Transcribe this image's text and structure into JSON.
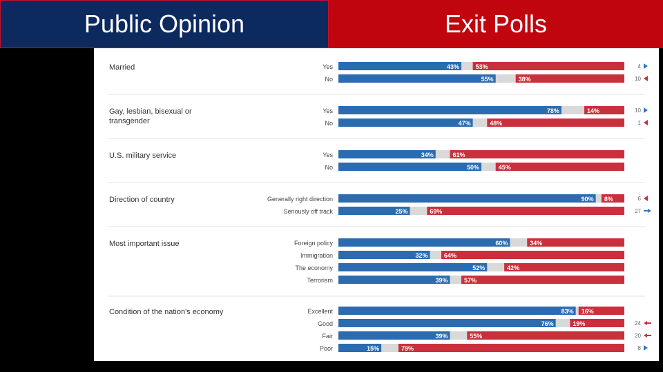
{
  "header": {
    "left_title": "Public Opinion",
    "right_title": "Exit Polls"
  },
  "chart_data": {
    "type": "bar",
    "orientation": "horizontal-stacked",
    "colors": {
      "blue": "#2b6cb0",
      "gray": "#d9d9d9",
      "red": "#c9303b",
      "up": "#2b78c4",
      "down": "#c9303b"
    },
    "groups": [
      {
        "question": [
          "Married"
        ],
        "rows": [
          {
            "label": "Yes",
            "blue": 43,
            "red": 53,
            "blue_label": "43%",
            "red_label": "53%",
            "change": "4",
            "dir": "right-blue"
          },
          {
            "label": "No",
            "blue": 55,
            "red": 38,
            "blue_label": "55%",
            "red_label": "38%",
            "change": "10",
            "dir": "left-red"
          }
        ]
      },
      {
        "question": [
          "Gay, lesbian, bisexual or",
          "transgender"
        ],
        "rows": [
          {
            "label": "Yes",
            "blue": 78,
            "red": 14,
            "blue_label": "78%",
            "red_label": "14%",
            "change": "10",
            "dir": "right-blue"
          },
          {
            "label": "No",
            "blue": 47,
            "red": 48,
            "blue_label": "47%",
            "red_label": "48%",
            "change": "1",
            "dir": "left-red"
          }
        ]
      },
      {
        "question": [
          "U.S. military service"
        ],
        "rows": [
          {
            "label": "Yes",
            "blue": 34,
            "red": 61,
            "blue_label": "34%",
            "red_label": "61%",
            "change": "",
            "dir": ""
          },
          {
            "label": "No",
            "blue": 50,
            "red": 45,
            "blue_label": "50%",
            "red_label": "45%",
            "change": "",
            "dir": ""
          }
        ]
      },
      {
        "question": [
          "Direction of country"
        ],
        "rows": [
          {
            "label": "Generally right direction",
            "blue": 90,
            "red": 8,
            "blue_label": "90%",
            "red_label": "8%",
            "change": "6",
            "dir": "left-red"
          },
          {
            "label": "Seriously off track",
            "blue": 25,
            "red": 69,
            "blue_label": "25%",
            "red_label": "69%",
            "change": "27",
            "dir": "right-arrow-blue"
          }
        ]
      },
      {
        "question": [
          "Most important issue"
        ],
        "rows": [
          {
            "label": "Foreign policy",
            "blue": 60,
            "red": 34,
            "blue_label": "60%",
            "red_label": "34%",
            "change": "",
            "dir": ""
          },
          {
            "label": "Immigration",
            "blue": 32,
            "red": 64,
            "blue_label": "32%",
            "red_label": "64%",
            "change": "",
            "dir": ""
          },
          {
            "label": "The economy",
            "blue": 52,
            "red": 42,
            "blue_label": "52%",
            "red_label": "42%",
            "change": "",
            "dir": ""
          },
          {
            "label": "Terrorism",
            "blue": 39,
            "red": 57,
            "blue_label": "39%",
            "red_label": "57%",
            "change": "",
            "dir": ""
          }
        ]
      },
      {
        "question": [
          "Condition of the nation's economy"
        ],
        "rows": [
          {
            "label": "Excellent",
            "blue": 83,
            "red": 16,
            "blue_label": "83%",
            "red_label": "16%",
            "change": "",
            "dir": ""
          },
          {
            "label": "Good",
            "blue": 76,
            "red": 19,
            "blue_label": "76%",
            "red_label": "19%",
            "change": "24",
            "dir": "left-arrow-red"
          },
          {
            "label": "Fair",
            "blue": 39,
            "red": 55,
            "blue_label": "39%",
            "red_label": "55%",
            "change": "20",
            "dir": "left-arrow-red"
          },
          {
            "label": "Poor",
            "blue": 15,
            "red": 79,
            "blue_label": "15%",
            "red_label": "79%",
            "change": "8",
            "dir": "right-blue"
          }
        ]
      }
    ]
  }
}
